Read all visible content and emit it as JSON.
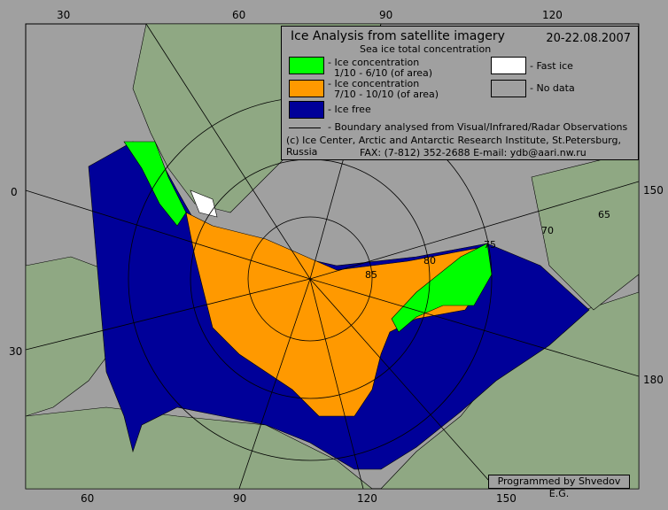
{
  "legend": {
    "title": "Ice Analysis from satellite imagery",
    "date": "20-22.08.2007",
    "subtitle": "Sea ice total concentration",
    "items": [
      {
        "color": "#00ff00",
        "label": "- Ice concentration\n  1/10 - 6/10 (of area)"
      },
      {
        "color": "#ff9900",
        "label": "- Ice concentration\n  7/10 - 10/10 (of area)"
      },
      {
        "color": "#000099",
        "label": "- Ice free"
      },
      {
        "color": "#ffffff",
        "label": "- Fast ice"
      },
      {
        "color": "#a0a0a0",
        "label": "- No data"
      }
    ],
    "boundary_label": "- Boundary analysed from Visual/Infrared/Radar Observations",
    "credit": "(c) Ice Center, Arctic and Antarctic Research Institute, St.Petersburg, Russia",
    "contact": "FAX: (7-812) 352-2688  E-mail: ydb@aari.nw.ru"
  },
  "footer": "Programmed by Shvedov E.G.",
  "ticks": {
    "top": [
      "30",
      "60",
      "90",
      "120"
    ],
    "bottom": [
      "60",
      "90",
      "120",
      "150"
    ],
    "left": [
      "0",
      "30"
    ],
    "right": [
      "150",
      "180"
    ]
  },
  "latitude_labels": [
    "85",
    "80",
    "75",
    "70",
    "65"
  ],
  "colors": {
    "land": "#8fa883",
    "nodata": "#a0a0a0",
    "ice_free": "#000099",
    "ice_high": "#ff9900",
    "ice_low": "#00ff00",
    "fast_ice": "#ffffff"
  }
}
